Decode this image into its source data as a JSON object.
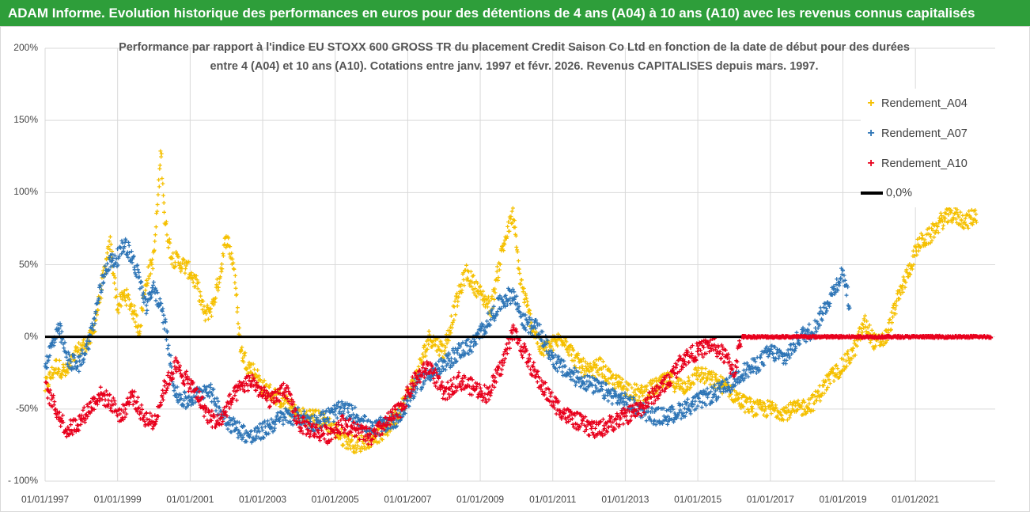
{
  "header": {
    "title": "ADAM Informe. Evolution historique des performances en euros pour des détentions de 4 ans (A04) à 10 ans (A10) avec les revenus connus capitalisés"
  },
  "chart_data": {
    "type": "scatter",
    "title_line1": "Performance par rapport à l'indice EU STOXX 600 GROSS TR  du placement Credit Saison Co Ltd en fonction de la date de début pour des durées",
    "title_line2": "entre 4 (A04) et 10 ans (A10). Cotations entre janv. 1997 et févr. 2026. Revenus CAPITALISES depuis mars. 1997.",
    "x_tick_labels": [
      "01/01/1997",
      "01/01/1999",
      "01/01/2001",
      "01/01/2003",
      "01/01/2005",
      "01/01/2007",
      "01/01/2009",
      "01/01/2011",
      "01/01/2013",
      "01/01/2015",
      "01/01/2017",
      "01/01/2019",
      "01/01/2021"
    ],
    "y_tick_labels": [
      "200%",
      "150%",
      "100%",
      "50%",
      "0%",
      "-50%",
      "- 100%"
    ],
    "xlim": [
      1997.0,
      2023.2
    ],
    "ylim": [
      -100,
      200
    ],
    "legend": [
      "Rendement_A04",
      "Rendement_A07",
      "Rendement_A10",
      "0,0%"
    ],
    "colors": {
      "A04": "#f5c000",
      "A07": "#2e75b6",
      "A10": "#e8001c",
      "zero": "#000000"
    },
    "series": [
      {
        "name": "Rendement_A04",
        "color": "#f5c000",
        "points": [
          [
            1997.0,
            -35
          ],
          [
            1997.3,
            -20
          ],
          [
            1997.6,
            -25
          ],
          [
            1997.9,
            -10
          ],
          [
            1998.1,
            -5
          ],
          [
            1998.3,
            0
          ],
          [
            1998.6,
            40
          ],
          [
            1998.8,
            65
          ],
          [
            1999.0,
            20
          ],
          [
            1999.2,
            30
          ],
          [
            1999.4,
            20
          ],
          [
            1999.6,
            5
          ],
          [
            1999.8,
            40
          ],
          [
            2000.0,
            55
          ],
          [
            2000.2,
            130
          ],
          [
            2000.3,
            80
          ],
          [
            2000.5,
            55
          ],
          [
            2000.8,
            50
          ],
          [
            2001.0,
            45
          ],
          [
            2001.2,
            35
          ],
          [
            2001.4,
            15
          ],
          [
            2001.6,
            20
          ],
          [
            2001.8,
            40
          ],
          [
            2002.0,
            70
          ],
          [
            2002.2,
            50
          ],
          [
            2002.4,
            -10
          ],
          [
            2002.6,
            -20
          ],
          [
            2002.8,
            -25
          ],
          [
            2003.0,
            -35
          ],
          [
            2003.3,
            -40
          ],
          [
            2003.6,
            -45
          ],
          [
            2004.0,
            -55
          ],
          [
            2004.4,
            -55
          ],
          [
            2004.8,
            -60
          ],
          [
            2005.2,
            -70
          ],
          [
            2005.6,
            -75
          ],
          [
            2006.0,
            -70
          ],
          [
            2006.4,
            -65
          ],
          [
            2006.8,
            -50
          ],
          [
            2007.2,
            -30
          ],
          [
            2007.6,
            0
          ],
          [
            2008.0,
            -10
          ],
          [
            2008.3,
            20
          ],
          [
            2008.6,
            45
          ],
          [
            2009.0,
            30
          ],
          [
            2009.3,
            20
          ],
          [
            2009.6,
            60
          ],
          [
            2009.9,
            85
          ],
          [
            2010.1,
            40
          ],
          [
            2010.4,
            10
          ],
          [
            2010.7,
            -10
          ],
          [
            2011.0,
            -5
          ],
          [
            2011.3,
            0
          ],
          [
            2011.6,
            -15
          ],
          [
            2012.0,
            -25
          ],
          [
            2012.3,
            -20
          ],
          [
            2012.6,
            -30
          ],
          [
            2013.0,
            -35
          ],
          [
            2013.4,
            -40
          ],
          [
            2013.8,
            -35
          ],
          [
            2014.2,
            -30
          ],
          [
            2014.6,
            -35
          ],
          [
            2015.0,
            -25
          ],
          [
            2015.4,
            -30
          ],
          [
            2015.8,
            -35
          ],
          [
            2016.2,
            -45
          ],
          [
            2016.6,
            -50
          ],
          [
            2017.0,
            -50
          ],
          [
            2017.4,
            -52
          ],
          [
            2017.8,
            -50
          ],
          [
            2018.2,
            -45
          ],
          [
            2018.6,
            -30
          ],
          [
            2019.0,
            -20
          ],
          [
            2019.3,
            -10
          ],
          [
            2019.6,
            10
          ],
          [
            2019.9,
            -5
          ],
          [
            2020.2,
            0
          ],
          [
            2020.5,
            25
          ],
          [
            2020.8,
            45
          ],
          [
            2021.1,
            65
          ],
          [
            2021.4,
            70
          ],
          [
            2021.7,
            80
          ],
          [
            2022.0,
            85
          ],
          [
            2022.4,
            80
          ],
          [
            2022.7,
            85
          ]
        ]
      },
      {
        "name": "Rendement_A07",
        "color": "#2e75b6",
        "points": [
          [
            1997.0,
            -20
          ],
          [
            1997.2,
            -5
          ],
          [
            1997.4,
            5
          ],
          [
            1997.6,
            -15
          ],
          [
            1997.9,
            -20
          ],
          [
            1998.1,
            -10
          ],
          [
            1998.3,
            5
          ],
          [
            1998.5,
            30
          ],
          [
            1998.7,
            50
          ],
          [
            1999.0,
            55
          ],
          [
            1999.2,
            65
          ],
          [
            1999.4,
            55
          ],
          [
            1999.6,
            40
          ],
          [
            1999.8,
            20
          ],
          [
            2000.0,
            35
          ],
          [
            2000.3,
            10
          ],
          [
            2000.6,
            -40
          ],
          [
            2000.9,
            -45
          ],
          [
            2001.2,
            -40
          ],
          [
            2001.5,
            -35
          ],
          [
            2001.8,
            -50
          ],
          [
            2002.1,
            -60
          ],
          [
            2002.4,
            -65
          ],
          [
            2002.7,
            -70
          ],
          [
            2003.0,
            -65
          ],
          [
            2003.3,
            -60
          ],
          [
            2003.6,
            -55
          ],
          [
            2004.0,
            -55
          ],
          [
            2004.4,
            -60
          ],
          [
            2004.8,
            -55
          ],
          [
            2005.2,
            -50
          ],
          [
            2005.6,
            -55
          ],
          [
            2006.0,
            -65
          ],
          [
            2006.4,
            -60
          ],
          [
            2006.8,
            -55
          ],
          [
            2007.2,
            -35
          ],
          [
            2007.6,
            -25
          ],
          [
            2008.0,
            -20
          ],
          [
            2008.4,
            -10
          ],
          [
            2008.8,
            -5
          ],
          [
            2009.2,
            10
          ],
          [
            2009.6,
            25
          ],
          [
            2009.9,
            30
          ],
          [
            2010.2,
            10
          ],
          [
            2010.6,
            5
          ],
          [
            2011.0,
            -15
          ],
          [
            2011.4,
            -25
          ],
          [
            2011.8,
            -30
          ],
          [
            2012.2,
            -35
          ],
          [
            2012.6,
            -40
          ],
          [
            2013.0,
            -45
          ],
          [
            2013.4,
            -50
          ],
          [
            2013.8,
            -55
          ],
          [
            2014.2,
            -55
          ],
          [
            2014.6,
            -50
          ],
          [
            2015.0,
            -45
          ],
          [
            2015.4,
            -40
          ],
          [
            2015.8,
            -35
          ],
          [
            2016.2,
            -25
          ],
          [
            2016.6,
            -20
          ],
          [
            2017.0,
            -10
          ],
          [
            2017.4,
            -15
          ],
          [
            2017.8,
            0
          ],
          [
            2018.2,
            5
          ],
          [
            2018.6,
            25
          ],
          [
            2019.0,
            45
          ],
          [
            2019.2,
            20
          ]
        ]
      },
      {
        "name": "Rendement_A10",
        "color": "#e8001c",
        "points": [
          [
            1997.0,
            -35
          ],
          [
            1997.3,
            -50
          ],
          [
            1997.6,
            -65
          ],
          [
            1997.9,
            -60
          ],
          [
            1998.2,
            -50
          ],
          [
            1998.5,
            -40
          ],
          [
            1998.8,
            -45
          ],
          [
            1999.1,
            -55
          ],
          [
            1999.4,
            -40
          ],
          [
            1999.7,
            -55
          ],
          [
            2000.0,
            -60
          ],
          [
            2000.3,
            -35
          ],
          [
            2000.6,
            -20
          ],
          [
            2000.9,
            -30
          ],
          [
            2001.2,
            -40
          ],
          [
            2001.5,
            -55
          ],
          [
            2001.8,
            -60
          ],
          [
            2002.1,
            -45
          ],
          [
            2002.4,
            -35
          ],
          [
            2002.7,
            -30
          ],
          [
            2003.0,
            -40
          ],
          [
            2003.3,
            -45
          ],
          [
            2003.6,
            -35
          ],
          [
            2004.0,
            -60
          ],
          [
            2004.4,
            -65
          ],
          [
            2004.8,
            -68
          ],
          [
            2005.2,
            -60
          ],
          [
            2005.6,
            -65
          ],
          [
            2006.0,
            -70
          ],
          [
            2006.4,
            -60
          ],
          [
            2006.8,
            -50
          ],
          [
            2007.2,
            -30
          ],
          [
            2007.6,
            -20
          ],
          [
            2008.0,
            -40
          ],
          [
            2008.4,
            -30
          ],
          [
            2008.8,
            -35
          ],
          [
            2009.2,
            -40
          ],
          [
            2009.6,
            -20
          ],
          [
            2009.9,
            5
          ],
          [
            2010.2,
            -10
          ],
          [
            2010.6,
            -30
          ],
          [
            2011.0,
            -45
          ],
          [
            2011.4,
            -55
          ],
          [
            2011.8,
            -60
          ],
          [
            2012.2,
            -65
          ],
          [
            2012.6,
            -60
          ],
          [
            2013.0,
            -55
          ],
          [
            2013.4,
            -50
          ],
          [
            2013.8,
            -40
          ],
          [
            2014.2,
            -30
          ],
          [
            2014.6,
            -15
          ],
          [
            2015.0,
            -10
          ],
          [
            2015.4,
            -5
          ],
          [
            2015.8,
            -15
          ],
          [
            2016.0,
            -25
          ],
          [
            2016.2,
            0
          ],
          [
            2023.1,
            0
          ]
        ]
      }
    ],
    "zero_line": 0
  }
}
